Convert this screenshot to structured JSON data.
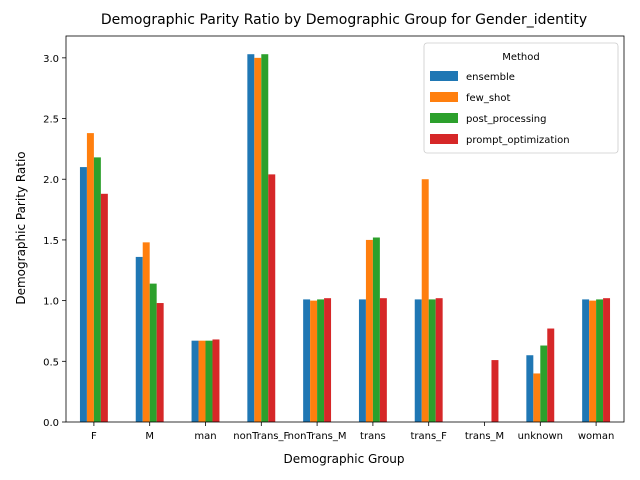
{
  "chart_data": {
    "type": "bar",
    "title": "Demographic Parity Ratio by Demographic Group for Gender_identity",
    "xlabel": "Demographic Group",
    "ylabel": "Demographic Parity Ratio",
    "ylim": [
      0,
      3.18
    ],
    "yticks": [
      0.0,
      0.5,
      1.0,
      1.5,
      2.0,
      2.5,
      3.0
    ],
    "ytick_labels": [
      "0.0",
      "0.5",
      "1.0",
      "1.5",
      "2.0",
      "2.5",
      "3.0"
    ],
    "grid": false,
    "legend": {
      "title": "Method",
      "placement": "top-right"
    },
    "categories": [
      "F",
      "M",
      "man",
      "nonTrans_F",
      "nonTrans_M",
      "trans",
      "trans_F",
      "trans_M",
      "unknown",
      "woman"
    ],
    "series": [
      {
        "name": "ensemble",
        "color": "#1f77b4",
        "values": [
          2.1,
          1.36,
          0.67,
          3.03,
          1.01,
          1.01,
          1.01,
          0,
          0.55,
          1.01
        ]
      },
      {
        "name": "few_shot",
        "color": "#ff7f0e",
        "values": [
          2.38,
          1.48,
          0.67,
          3.0,
          1.0,
          1.5,
          2.0,
          0,
          0.4,
          1.0
        ]
      },
      {
        "name": "post_processing",
        "color": "#2ca02c",
        "values": [
          2.18,
          1.14,
          0.67,
          3.03,
          1.01,
          1.52,
          1.01,
          0,
          0.63,
          1.01
        ]
      },
      {
        "name": "prompt_optimization",
        "color": "#d62728",
        "values": [
          1.88,
          0.98,
          0.68,
          2.04,
          1.02,
          1.02,
          1.02,
          0.51,
          0.77,
          1.02
        ]
      }
    ]
  }
}
